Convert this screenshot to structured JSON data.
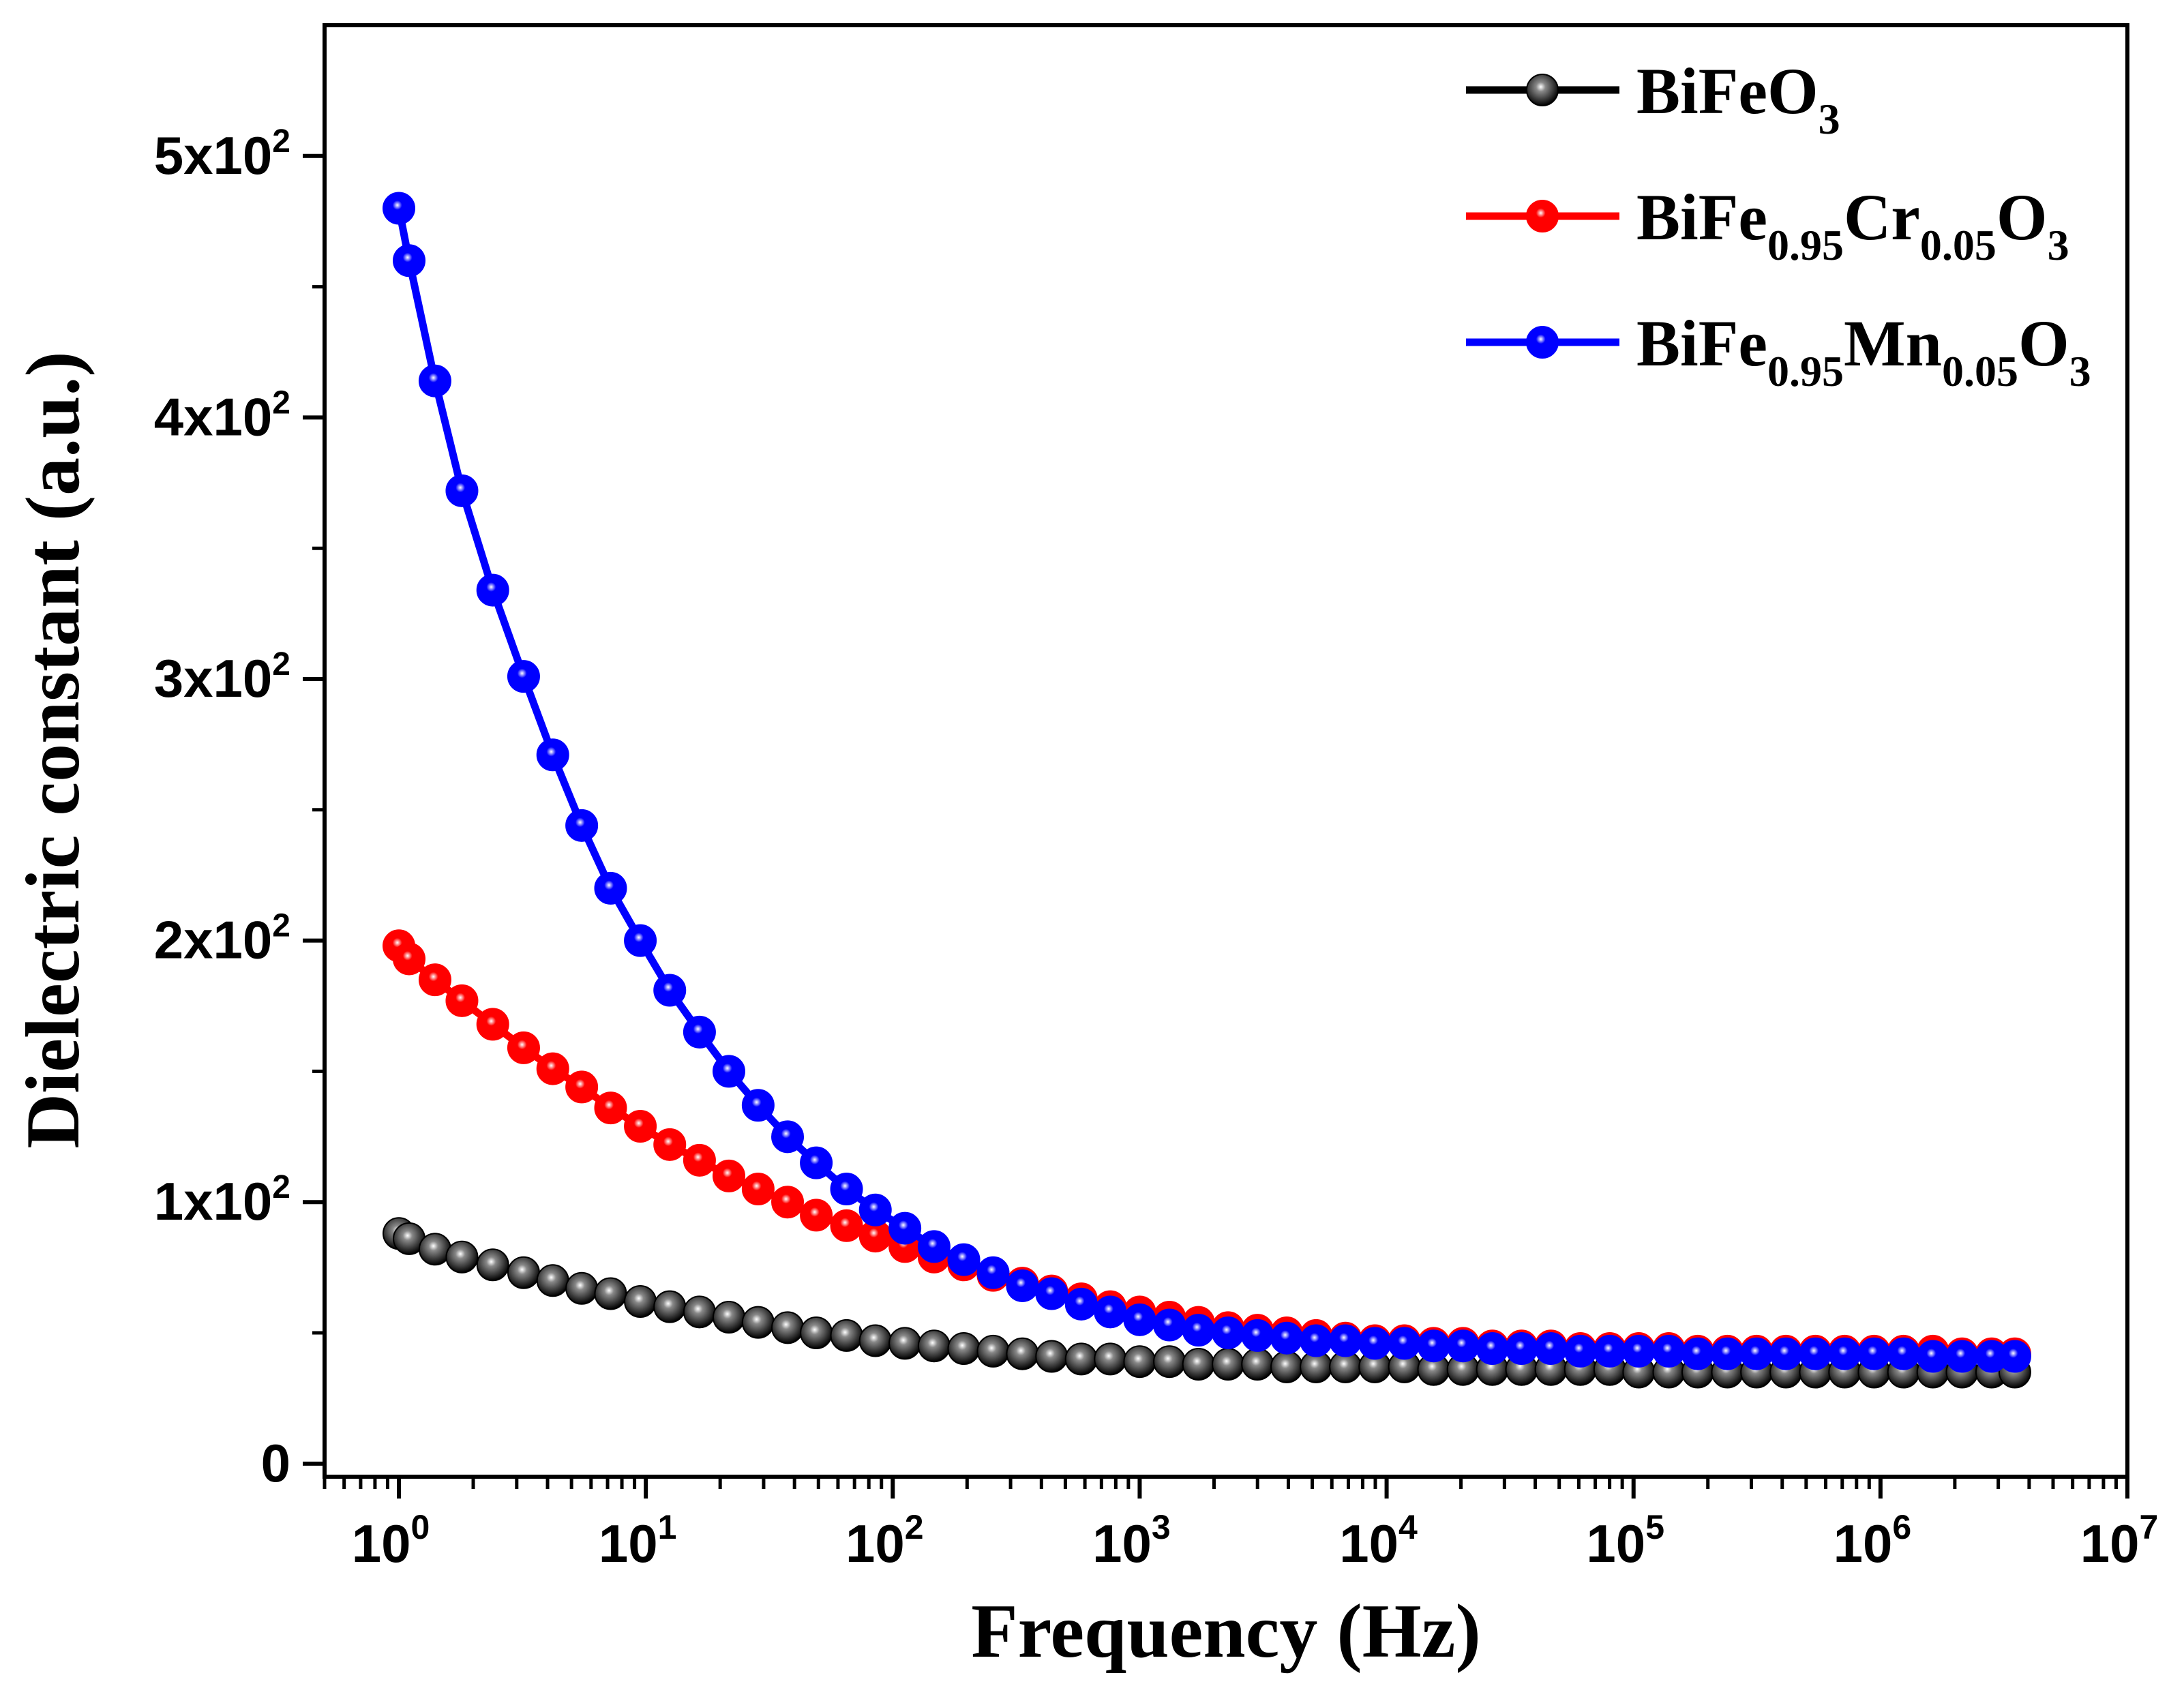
{
  "chart_data": {
    "type": "line",
    "xlabel": "Frequency (Hz)",
    "ylabel": "Dielectric constant (a.u.)",
    "xscale": "log",
    "xlim": [
      0.5,
      10000000
    ],
    "ylim": [
      -5,
      550
    ],
    "grid": false,
    "legend_position": "top-right",
    "x_ticks": [
      {
        "value": 1,
        "base": "10",
        "exp": "0"
      },
      {
        "value": 10,
        "base": "10",
        "exp": "1"
      },
      {
        "value": 100,
        "base": "10",
        "exp": "2"
      },
      {
        "value": 1000,
        "base": "10",
        "exp": "3"
      },
      {
        "value": 10000,
        "base": "10",
        "exp": "4"
      },
      {
        "value": 100000,
        "base": "10",
        "exp": "5"
      },
      {
        "value": 1000000,
        "base": "10",
        "exp": "6"
      },
      {
        "value": 10000000,
        "base": "10",
        "exp": "7"
      }
    ],
    "y_ticks": [
      {
        "value": 0,
        "mant": "0",
        "exp": ""
      },
      {
        "value": 100,
        "mant": "1x10",
        "exp": "2"
      },
      {
        "value": 200,
        "mant": "2x10",
        "exp": "2"
      },
      {
        "value": 300,
        "mant": "3x10",
        "exp": "2"
      },
      {
        "value": 400,
        "mant": "4x10",
        "exp": "2"
      },
      {
        "value": 500,
        "mant": "5x10",
        "exp": "2"
      }
    ],
    "x": [
      1,
      1.1,
      1.4,
      1.8,
      2.4,
      3.2,
      4.2,
      5.5,
      7.2,
      9.5,
      12.5,
      16.5,
      21.7,
      28.5,
      37.5,
      49,
      65,
      85,
      112,
      147,
      194,
      255,
      335,
      440,
      580,
      760,
      1000,
      1320,
      1730,
      2280,
      3000,
      3940,
      5180,
      6810,
      8960,
      11800,
      15500,
      20400,
      26800,
      35200,
      46300,
      60900,
      80100,
      105000,
      139000,
      182000,
      240000,
      315000,
      414000,
      545000,
      716000,
      942000,
      1240000,
      1630000,
      2140000,
      2820000,
      3500000
    ],
    "series": [
      {
        "name": "BiFeO3",
        "name_parts": [
          {
            "t": "BiFeO",
            "sub": false
          },
          {
            "t": "3",
            "sub": true
          }
        ],
        "color": "#000000",
        "values": [
          88,
          86,
          82,
          79,
          76,
          73,
          70,
          67,
          65,
          62,
          60,
          58,
          56,
          54,
          52,
          50,
          49,
          47,
          46,
          45,
          44,
          43,
          42,
          41,
          40,
          40,
          39,
          39,
          38,
          38,
          38,
          37,
          37,
          37,
          37,
          37,
          36,
          36,
          36,
          36,
          36,
          36,
          36,
          35,
          35,
          35,
          35,
          35,
          35,
          35,
          35,
          35,
          35,
          35,
          35,
          35,
          35
        ]
      },
      {
        "name": "BiFe0.95Cr0.05O3",
        "name_parts": [
          {
            "t": "BiFe",
            "sub": false
          },
          {
            "t": "0.95",
            "sub": true
          },
          {
            "t": "Cr",
            "sub": false
          },
          {
            "t": "0.05",
            "sub": true
          },
          {
            "t": "O",
            "sub": false
          },
          {
            "t": "3",
            "sub": true
          }
        ],
        "color": "#ff0000",
        "values": [
          198,
          193,
          185,
          177,
          168,
          159,
          151,
          144,
          136,
          129,
          122,
          116,
          110,
          105,
          100,
          95,
          91,
          87,
          83,
          79,
          76,
          72,
          69,
          66,
          63,
          60,
          58,
          56,
          54,
          52,
          51,
          50,
          49,
          48,
          47,
          47,
          46,
          46,
          45,
          45,
          45,
          44,
          44,
          44,
          44,
          43,
          43,
          43,
          43,
          43,
          43,
          43,
          43,
          43,
          42,
          42,
          42
        ]
      },
      {
        "name": "BiFe0.95Mn0.05O3",
        "name_parts": [
          {
            "t": "BiFe",
            "sub": false
          },
          {
            "t": "0.95",
            "sub": true
          },
          {
            "t": "Mn",
            "sub": false
          },
          {
            "t": "0.05",
            "sub": true
          },
          {
            "t": "O",
            "sub": false
          },
          {
            "t": "3",
            "sub": true
          }
        ],
        "color": "#0000ff",
        "values": [
          480,
          460,
          414,
          372,
          334,
          301,
          271,
          244,
          220,
          200,
          181,
          165,
          150,
          137,
          125,
          115,
          105,
          97,
          90,
          83,
          78,
          73,
          68,
          65,
          61,
          58,
          55,
          53,
          51,
          50,
          49,
          48,
          47,
          47,
          46,
          46,
          45,
          45,
          44,
          44,
          44,
          43,
          43,
          43,
          43,
          42,
          42,
          42,
          42,
          42,
          42,
          42,
          42,
          41,
          41,
          41,
          41
        ]
      }
    ]
  }
}
